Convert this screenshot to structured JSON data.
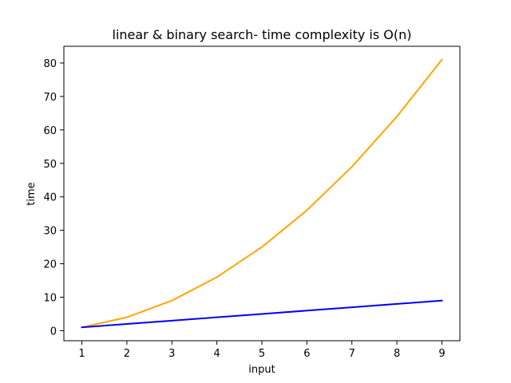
{
  "chart_data": {
    "type": "line",
    "title": "linear & binary search- time complexity is O(n)",
    "xlabel": "input",
    "ylabel": "time",
    "x": [
      1,
      2,
      3,
      4,
      5,
      6,
      7,
      8,
      9
    ],
    "xlim": [
      0.6,
      9.4
    ],
    "ylim": [
      -3,
      85
    ],
    "xticks": [
      1,
      2,
      3,
      4,
      5,
      6,
      7,
      8,
      9
    ],
    "yticks": [
      0,
      10,
      20,
      30,
      40,
      50,
      60,
      70,
      80
    ],
    "grid": false,
    "series": [
      {
        "values": [
          1,
          4,
          9,
          16,
          25,
          36,
          49,
          64,
          81
        ],
        "color": "#ffa500"
      },
      {
        "values": [
          1,
          2,
          3,
          4,
          5,
          6,
          7,
          8,
          9
        ],
        "color": "#0000ff"
      }
    ]
  }
}
